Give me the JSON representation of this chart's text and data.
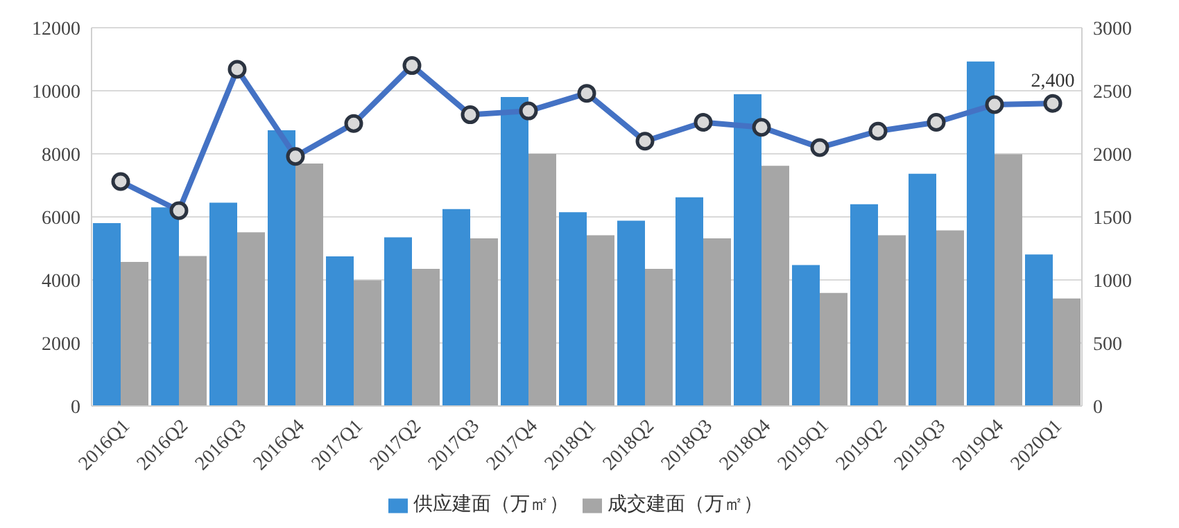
{
  "chart_data": {
    "type": "bar",
    "categories": [
      "2016Q1",
      "2016Q2",
      "2016Q3",
      "2016Q4",
      "2017Q1",
      "2017Q2",
      "2017Q3",
      "2017Q4",
      "2018Q1",
      "2018Q2",
      "2018Q3",
      "2018Q4",
      "2019Q1",
      "2019Q2",
      "2019Q3",
      "2019Q4",
      "2020Q1"
    ],
    "series": [
      {
        "name": "供应建面（万㎡）",
        "color": "#3a8fd6",
        "values": [
          5800,
          6300,
          6450,
          8750,
          4750,
          5350,
          6250,
          9800,
          6150,
          5880,
          6620,
          9890,
          4470,
          6400,
          7370,
          10930,
          4810
        ]
      },
      {
        "name": "成交建面（万㎡）",
        "color": "#a6a6a6",
        "values": [
          4570,
          4760,
          5510,
          7690,
          3990,
          4350,
          5320,
          8000,
          5420,
          4350,
          5320,
          7620,
          3590,
          5420,
          5570,
          7990,
          3410
        ]
      },
      {
        "type": "line",
        "axis": "y2",
        "color": "#4472c4",
        "values": [
          1780,
          1550,
          2670,
          1980,
          2240,
          2700,
          2310,
          2340,
          2480,
          2100,
          2250,
          2210,
          2050,
          2180,
          2250,
          2390,
          2400
        ],
        "value_labels": [
          null,
          null,
          null,
          null,
          null,
          null,
          null,
          null,
          null,
          null,
          null,
          null,
          null,
          null,
          null,
          null,
          "2,400"
        ]
      }
    ],
    "ylim": [
      0,
      12000
    ],
    "yticks": [
      0,
      2000,
      4000,
      6000,
      8000,
      10000,
      12000
    ],
    "y2lim": [
      0,
      3000
    ],
    "y2ticks": [
      0,
      500,
      1000,
      1500,
      2000,
      2500,
      3000
    ],
    "grid": "y",
    "legend": "bottom",
    "marker": "circle"
  }
}
